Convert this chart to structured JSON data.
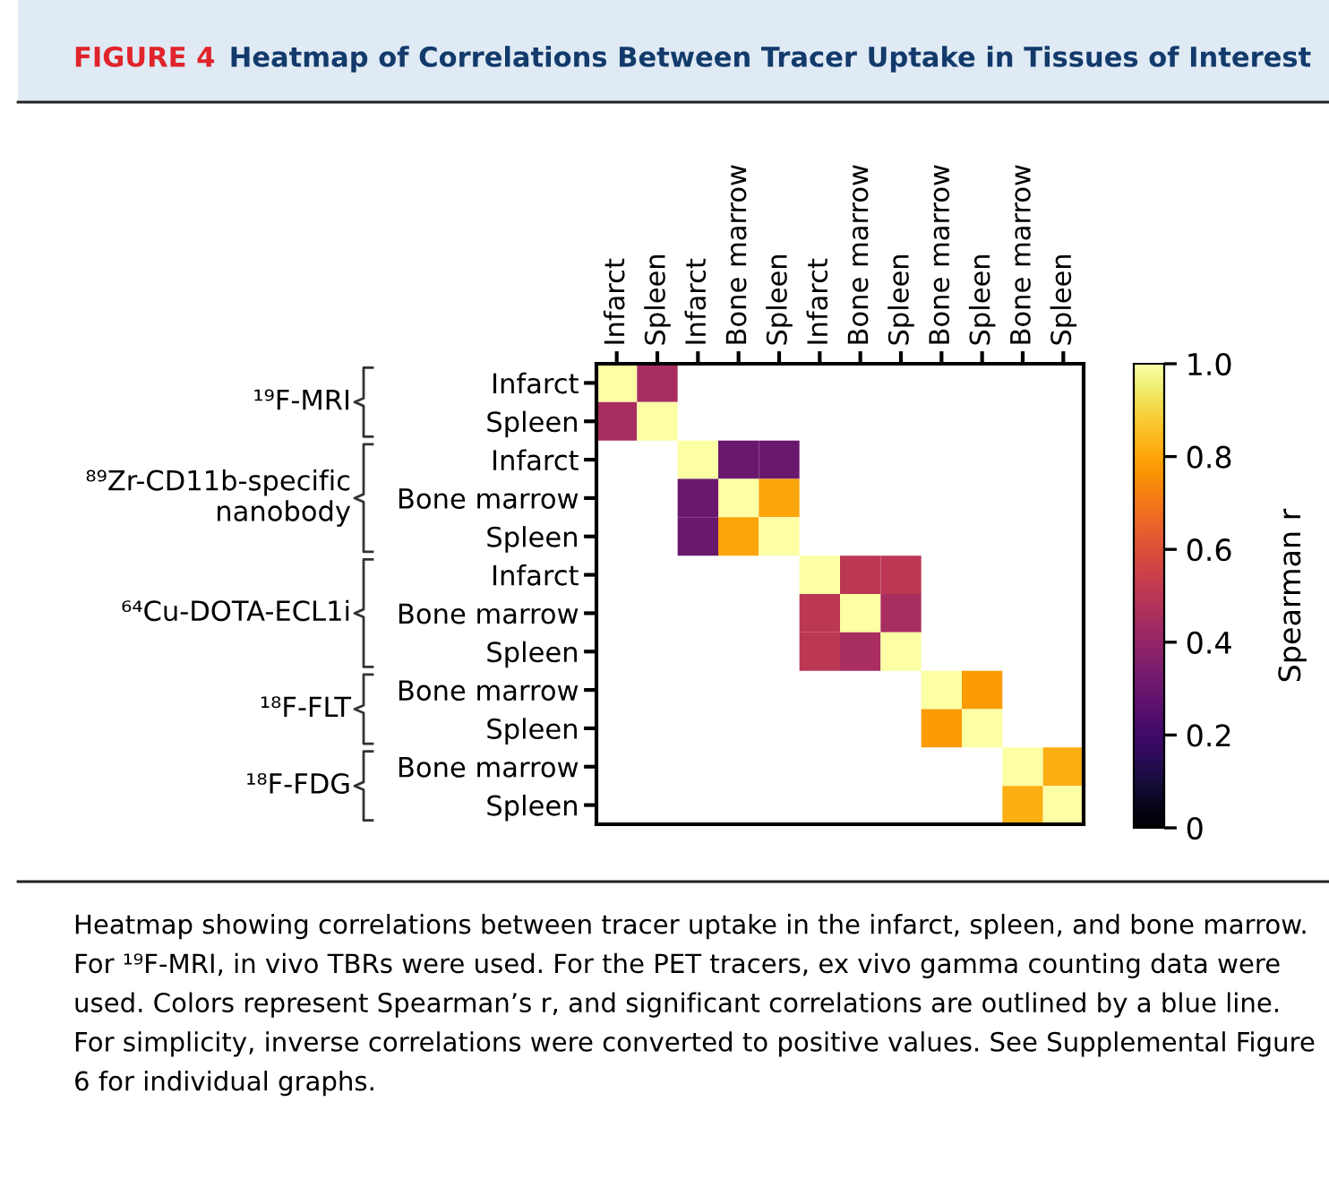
{
  "chart_data": {
    "type": "heatmap",
    "title": "FIGURE 4",
    "subtitle": "Heatmap of Correlations Between Tracer Uptake in Tissues of Interest",
    "categories": [
      "Infarct",
      "Spleen",
      "Infarct",
      "Bone marrow",
      "Spleen",
      "Infarct",
      "Bone marrow",
      "Spleen",
      "Bone marrow",
      "Spleen",
      "Bone marrow",
      "Spleen"
    ],
    "y_categories": [
      "Infarct",
      "Spleen",
      "Infarct",
      "Bone marrow",
      "Spleen",
      "Infarct",
      "Bone marrow",
      "Spleen",
      "Bone marrow",
      "Spleen",
      "Bone marrow",
      "Spleen"
    ],
    "cells": [
      [
        1.0,
        0.45,
        null,
        null,
        null,
        null,
        null,
        null,
        null,
        null,
        null,
        null
      ],
      [
        0.45,
        1.0,
        null,
        null,
        null,
        null,
        null,
        null,
        null,
        null,
        null,
        null
      ],
      [
        null,
        null,
        1.0,
        0.3,
        0.3,
        null,
        null,
        null,
        null,
        null,
        null,
        null
      ],
      [
        null,
        null,
        0.3,
        1.0,
        0.8,
        null,
        null,
        null,
        null,
        null,
        null,
        null
      ],
      [
        null,
        null,
        0.3,
        0.8,
        1.0,
        null,
        null,
        null,
        null,
        null,
        null,
        null
      ],
      [
        null,
        null,
        null,
        null,
        null,
        1.0,
        0.5,
        0.5,
        null,
        null,
        null,
        null
      ],
      [
        null,
        null,
        null,
        null,
        null,
        0.5,
        1.0,
        0.45,
        null,
        null,
        null,
        null
      ],
      [
        null,
        null,
        null,
        null,
        null,
        0.5,
        0.45,
        1.0,
        null,
        null,
        null,
        null
      ],
      [
        null,
        null,
        null,
        null,
        null,
        null,
        null,
        null,
        1.0,
        0.78,
        null,
        null
      ],
      [
        null,
        null,
        null,
        null,
        null,
        null,
        null,
        null,
        0.78,
        1.0,
        null,
        null
      ],
      [
        null,
        null,
        null,
        null,
        null,
        null,
        null,
        null,
        null,
        null,
        1.0,
        0.82
      ],
      [
        null,
        null,
        null,
        null,
        null,
        null,
        null,
        null,
        null,
        null,
        0.82,
        1.0
      ]
    ],
    "clim": [
      0,
      1
    ],
    "cticks": [
      0,
      0.2,
      0.4,
      0.6,
      0.8,
      {
        "value": 1,
        "label": "1.0"
      }
    ],
    "clabel": "Spearman r",
    "annotations": [
      "¹⁹F-MRI",
      "⁸⁹Zr-CD11b-specific\nnanobody",
      "⁶⁴Cu-DOTA-ECL1i",
      "¹⁸F-FLT",
      "¹⁸F-FDG",
      "Heatmap showing correlations between tracer uptake in the infarct, spleen, and bone marrow. For ¹⁹F-MRI, in vivo TBRs were used. For the PET tracers, ex vivo gamma counting data were used. Colors represent Spearman’s r, and significant correlations are outlined by a blue line. For simplicity, inverse correlations were converted to positive values. See Supplemental Figure 6 for individual graphs."
    ]
  }
}
